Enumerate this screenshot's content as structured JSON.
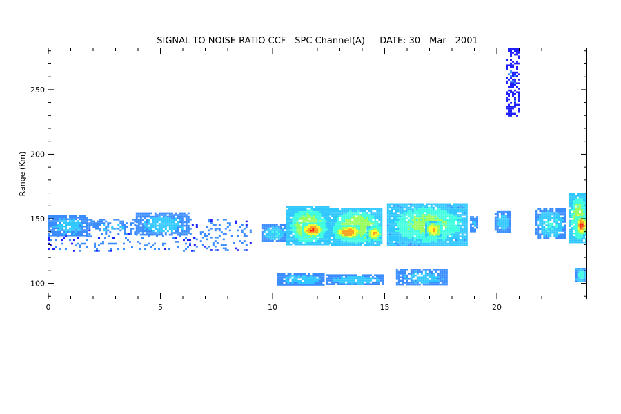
{
  "chart_data": {
    "type": "heatmap",
    "title": "SIGNAL TO NOISE RATIO CCF—SPC Channel(A) — DATE: 30—Mar—2001",
    "xlabel": "",
    "ylabel": "Range (Km)",
    "xlim": [
      0,
      24
    ],
    "ylim": [
      88,
      282
    ],
    "x_ticks": [
      0,
      5,
      10,
      15,
      20
    ],
    "y_ticks": [
      100,
      150,
      200,
      250
    ],
    "x_minor_step": 1,
    "y_minor_step": 10,
    "grid": false,
    "colormap": [
      "#2020ff",
      "#3a8cff",
      "#30c8ff",
      "#40ffe0",
      "#9aff60",
      "#ffff30",
      "#ffa020",
      "#ff2010"
    ],
    "features": [
      {
        "x0": 0.0,
        "x1": 1.7,
        "y0": 137,
        "y1": 153,
        "intensity": 0.28,
        "density": 0.85
      },
      {
        "x0": 1.7,
        "x1": 3.9,
        "y0": 138,
        "y1": 150,
        "intensity": 0.22,
        "density": 0.45
      },
      {
        "x0": 3.9,
        "x1": 6.3,
        "y0": 137,
        "y1": 155,
        "intensity": 0.3,
        "density": 0.85
      },
      {
        "x0": 6.3,
        "x1": 9.0,
        "y0": 125,
        "y1": 150,
        "intensity": 0.15,
        "density": 0.18
      },
      {
        "x0": 0.0,
        "x1": 6.5,
        "y0": 125,
        "y1": 137,
        "intensity": 0.15,
        "density": 0.15
      },
      {
        "x0": 9.5,
        "x1": 10.6,
        "y0": 133,
        "y1": 146,
        "intensity": 0.35,
        "density": 0.9
      },
      {
        "x0": 10.6,
        "x1": 12.5,
        "y0": 130,
        "y1": 160,
        "intensity": 0.6,
        "density": 0.95
      },
      {
        "x0": 11.3,
        "x1": 12.2,
        "y0": 137,
        "y1": 147,
        "intensity": 0.98,
        "density": 1.0
      },
      {
        "x0": 12.5,
        "x1": 14.9,
        "y0": 130,
        "y1": 158,
        "intensity": 0.62,
        "density": 0.95
      },
      {
        "x0": 12.8,
        "x1": 13.9,
        "y0": 135,
        "y1": 145,
        "intensity": 0.9,
        "density": 1.0
      },
      {
        "x0": 14.2,
        "x1": 14.8,
        "y0": 134,
        "y1": 144,
        "intensity": 0.82,
        "density": 1.0
      },
      {
        "x0": 15.1,
        "x1": 18.7,
        "y0": 130,
        "y1": 162,
        "intensity": 0.55,
        "density": 0.95
      },
      {
        "x0": 16.8,
        "x1": 17.5,
        "y0": 136,
        "y1": 148,
        "intensity": 0.78,
        "density": 1.0
      },
      {
        "x0": 18.8,
        "x1": 19.1,
        "y0": 140,
        "y1": 152,
        "intensity": 0.25,
        "density": 0.8
      },
      {
        "x0": 19.9,
        "x1": 20.6,
        "y0": 140,
        "y1": 156,
        "intensity": 0.3,
        "density": 0.85
      },
      {
        "x0": 21.7,
        "x1": 23.0,
        "y0": 135,
        "y1": 158,
        "intensity": 0.38,
        "density": 0.85
      },
      {
        "x0": 23.2,
        "x1": 24.0,
        "y0": 132,
        "y1": 170,
        "intensity": 0.62,
        "density": 0.95
      },
      {
        "x0": 23.5,
        "x1": 23.95,
        "y0": 139,
        "y1": 152,
        "intensity": 1.0,
        "density": 1.0
      },
      {
        "x0": 10.2,
        "x1": 12.3,
        "y0": 99,
        "y1": 108,
        "intensity": 0.3,
        "density": 0.9
      },
      {
        "x0": 12.4,
        "x1": 14.9,
        "y0": 99,
        "y1": 107,
        "intensity": 0.32,
        "density": 0.9
      },
      {
        "x0": 15.5,
        "x1": 17.8,
        "y0": 99,
        "y1": 111,
        "intensity": 0.28,
        "density": 0.85
      },
      {
        "x0": 23.5,
        "x1": 23.9,
        "y0": 101,
        "y1": 112,
        "intensity": 0.45,
        "density": 1.0
      },
      {
        "x0": 20.4,
        "x1": 21.0,
        "y0": 230,
        "y1": 282,
        "intensity": 0.05,
        "density": 0.45
      }
    ]
  }
}
